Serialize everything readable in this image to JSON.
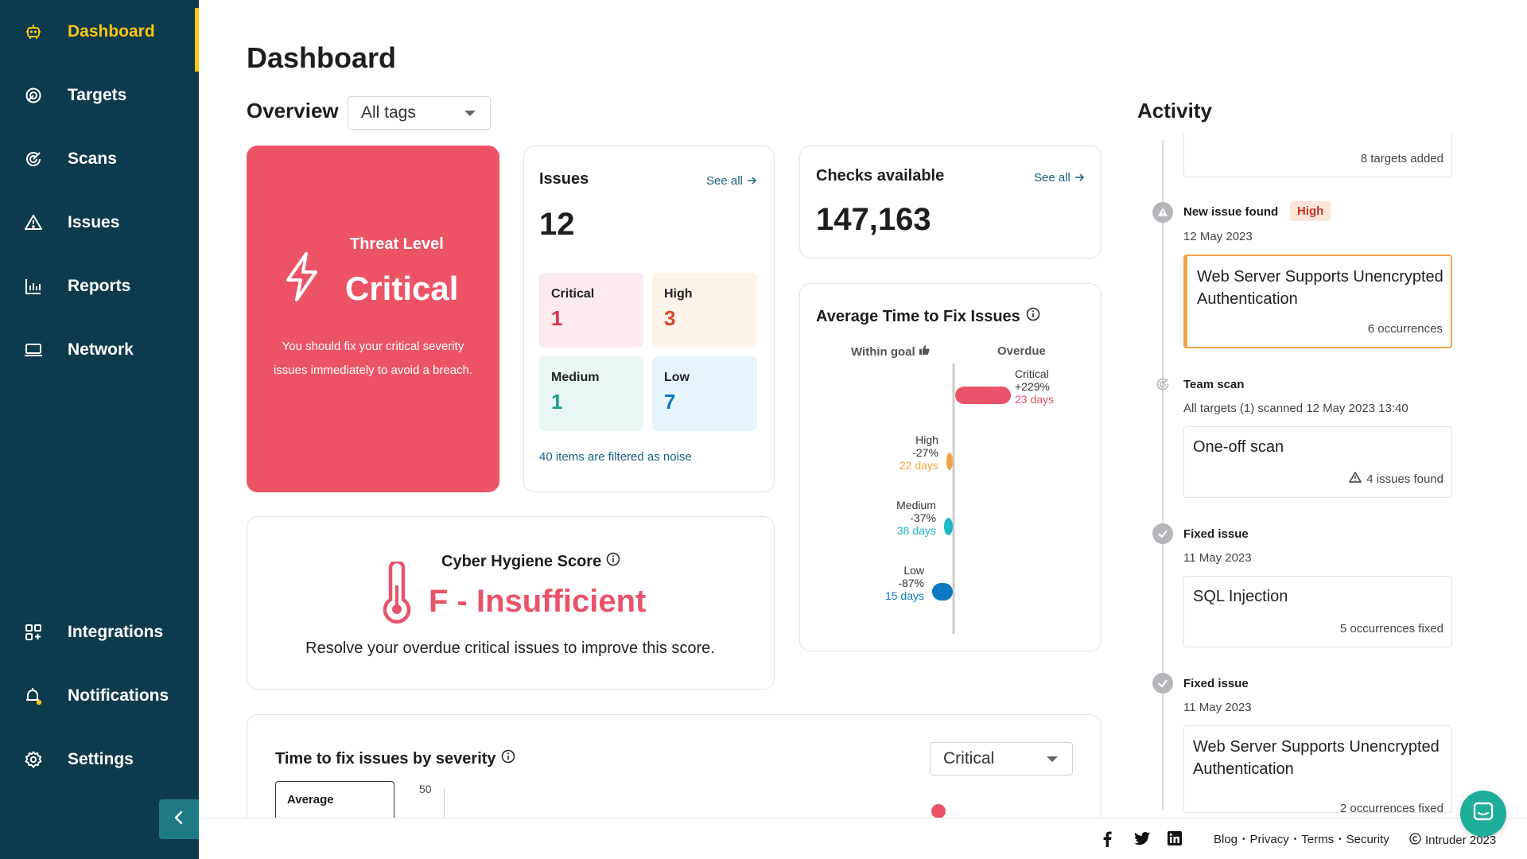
{
  "sidebar": {
    "items": [
      {
        "label": "Dashboard",
        "icon": "robot-icon",
        "active": true
      },
      {
        "label": "Targets",
        "icon": "target-icon"
      },
      {
        "label": "Scans",
        "icon": "scan-icon"
      },
      {
        "label": "Issues",
        "icon": "warning-icon"
      },
      {
        "label": "Reports",
        "icon": "bar-chart-icon"
      },
      {
        "label": "Network",
        "icon": "laptop-icon"
      }
    ],
    "bottom_items": [
      {
        "label": "Integrations",
        "icon": "grid-plus-icon"
      },
      {
        "label": "Notifications",
        "icon": "bell-icon"
      },
      {
        "label": "Settings",
        "icon": "gear-icon"
      }
    ]
  },
  "page": {
    "title": "Dashboard"
  },
  "overview": {
    "heading": "Overview",
    "tags_select": "All tags",
    "threat": {
      "label": "Threat Level",
      "level": "Critical",
      "description": "You should fix your critical severity issues immediately to avoid a breach."
    },
    "issues": {
      "title": "Issues",
      "see_all": "See all",
      "count": "12",
      "critical_label": "Critical",
      "critical_count": "1",
      "high_label": "High",
      "high_count": "3",
      "medium_label": "Medium",
      "medium_count": "1",
      "low_label": "Low",
      "low_count": "7",
      "noise_note": "40 items are filtered as noise"
    },
    "checks": {
      "title": "Checks available",
      "see_all": "See all",
      "count": "147,163"
    },
    "hygiene": {
      "title": "Cyber Hygiene Score",
      "grade": "F - Insufficient",
      "hint": "Resolve your overdue critical issues to improve this score."
    },
    "avg_fix": {
      "title": "Average Time to Fix Issues",
      "within_goal": "Within goal",
      "overdue": "Overdue"
    },
    "time_fix": {
      "title": "Time to fix issues by severity",
      "select": "Critical",
      "tab": "Average",
      "axis_top": "50"
    }
  },
  "chart_data": {
    "type": "bar",
    "title": "Average Time to Fix Issues",
    "categories": [
      "Critical",
      "High",
      "Medium",
      "Low"
    ],
    "values": [
      229,
      -27,
      -37,
      -87
    ],
    "value_labels": [
      "+229%",
      "-27%",
      "-37%",
      "-87%"
    ],
    "days": [
      "23 days",
      "22 days",
      "38 days",
      "15 days"
    ],
    "colors": [
      "#e8536a",
      "#f2a347",
      "#1fb8c9",
      "#0b79bf"
    ],
    "legend": [
      "Within goal",
      "Overdue"
    ]
  },
  "activity": {
    "heading": "Activity",
    "top_card_note": "8 targets added",
    "events": [
      {
        "title": "New issue found",
        "badge": "High",
        "date": "12 May 2023",
        "card_title": "Web Server Supports Unencrypted Authentication",
        "card_note": "6 occurrences"
      },
      {
        "title": "Team scan",
        "date": "All targets (1) scanned 12 May 2023 13:40",
        "card_title": "One-off scan",
        "card_note": "4 issues found"
      },
      {
        "title": "Fixed issue",
        "date": "11 May 2023",
        "card_title": "SQL Injection",
        "card_note": "5 occurrences fixed"
      },
      {
        "title": "Fixed issue",
        "date": "11 May 2023",
        "card_title": "Web Server Supports Unencrypted Authentication",
        "card_note": "2 occurrences fixed"
      }
    ]
  },
  "footer": {
    "blog": "Blog",
    "privacy": "Privacy",
    "terms": "Terms",
    "security": "Security",
    "copyright": "Intruder 2023"
  },
  "colors": {
    "sidebar": "#0e3a4d",
    "accent": "#f9c512",
    "critical": "#e8536a",
    "high": "#d9462f",
    "medium": "#1b9e8f",
    "low": "#0b79bf"
  }
}
